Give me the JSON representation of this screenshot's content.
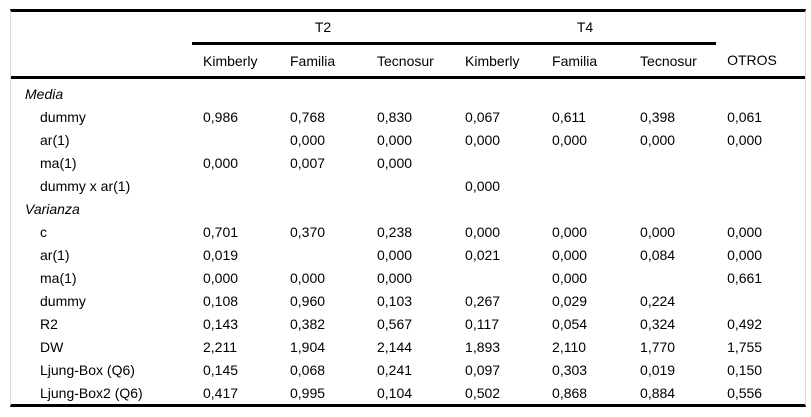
{
  "table": {
    "group_header": {
      "t2": "T2",
      "t4": "T4"
    },
    "columns": [
      "Kimberly",
      "Familia",
      "Tecnosur",
      "Kimberly",
      "Familia",
      "Tecnosur",
      "OTROS"
    ],
    "rows": [
      {
        "label": "Media",
        "type": "section",
        "values": [
          "",
          "",
          "",
          "",
          "",
          "",
          ""
        ]
      },
      {
        "label": "dummy",
        "type": "item",
        "values": [
          "0,986",
          "0,768",
          "0,830",
          "0,067",
          "0,611",
          "0,398",
          "0,061"
        ]
      },
      {
        "label": "ar(1)",
        "type": "item",
        "values": [
          "",
          "0,000",
          "0,000",
          "0,000",
          "0,000",
          "0,000",
          "0,000"
        ]
      },
      {
        "label": "ma(1)",
        "type": "item",
        "values": [
          "0,000",
          "0,007",
          "0,000",
          "",
          "",
          "",
          ""
        ]
      },
      {
        "label": "dummy x ar(1)",
        "type": "item",
        "values": [
          "",
          "",
          "",
          "0,000",
          "",
          "",
          ""
        ]
      },
      {
        "label": "Varianza",
        "type": "section",
        "values": [
          "",
          "",
          "",
          "",
          "",
          "",
          ""
        ]
      },
      {
        "label": "c",
        "type": "item",
        "values": [
          "0,701",
          "0,370",
          "0,238",
          "0,000",
          "0,000",
          "0,000",
          "0,000"
        ]
      },
      {
        "label": "ar(1)",
        "type": "item",
        "values": [
          "0,019",
          "",
          "0,000",
          "0,021",
          "0,000",
          "0,084",
          "0,000"
        ]
      },
      {
        "label": "ma(1)",
        "type": "item",
        "values": [
          "0,000",
          "0,000",
          "0,000",
          "",
          "0,000",
          "",
          "0,661"
        ]
      },
      {
        "label": "dummy",
        "type": "item",
        "values": [
          "0,108",
          "0,960",
          "0,103",
          "0,267",
          "0,029",
          "0,224",
          ""
        ]
      },
      {
        "label": "R2",
        "type": "item",
        "values": [
          "0,143",
          "0,382",
          "0,567",
          "0,117",
          "0,054",
          "0,324",
          "0,492"
        ]
      },
      {
        "label": "DW",
        "type": "item",
        "values": [
          "2,211",
          "1,904",
          "2,144",
          "1,893",
          "2,110",
          "1,770",
          "1,755"
        ]
      },
      {
        "label": "Ljung-Box (Q6)",
        "type": "item",
        "values": [
          "0,145",
          "0,068",
          "0,241",
          "0,097",
          "0,303",
          "0,019",
          "0,150"
        ]
      },
      {
        "label": "Ljung-Box2 (Q6)",
        "type": "item",
        "values": [
          "0,417",
          "0,995",
          "0,104",
          "0,502",
          "0,868",
          "0,884",
          "0,556"
        ]
      }
    ],
    "colors": {
      "rule": "#000000",
      "frame": "#d9d9d9",
      "text": "#000000",
      "background": "#ffffff"
    }
  }
}
